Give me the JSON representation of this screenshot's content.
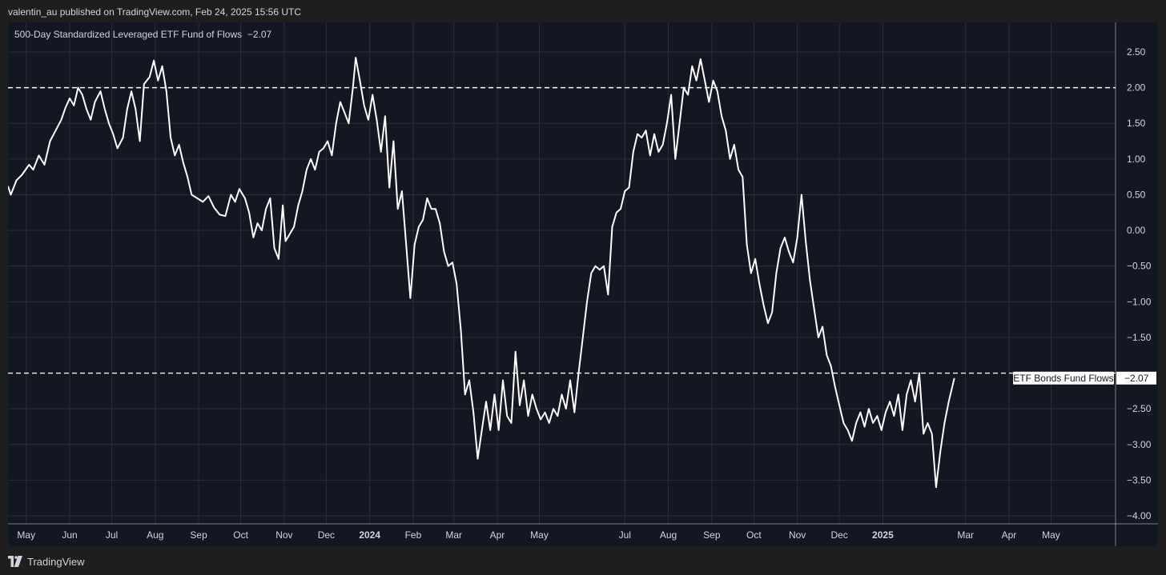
{
  "header": {
    "attribution": "valentin_au published on TradingView.com, Feb 24, 2025 15:56 UTC"
  },
  "footer": {
    "brand": "TradingView"
  },
  "colors": {
    "background": "#131722",
    "line": "#ffffff",
    "grid": "#2a2e39"
  },
  "chart_data": {
    "type": "line",
    "title": "500-Day Standardized Leveraged ETF Fund of Flows",
    "last_value_label": "−2.07",
    "ylim": [
      -4.0,
      2.85
    ],
    "yticks": [
      {
        "v": 2.5,
        "label": "2.50"
      },
      {
        "v": 2.0,
        "label": "2.00"
      },
      {
        "v": 1.5,
        "label": "1.50"
      },
      {
        "v": 1.0,
        "label": "1.00"
      },
      {
        "v": 0.5,
        "label": "0.50"
      },
      {
        "v": 0.0,
        "label": "0.00"
      },
      {
        "v": -0.5,
        "label": "−0.50"
      },
      {
        "v": -1.0,
        "label": "−1.00"
      },
      {
        "v": -1.5,
        "label": "−1.50"
      },
      {
        "v": -2.5,
        "label": "−2.50"
      },
      {
        "v": -3.0,
        "label": "−3.00"
      },
      {
        "v": -3.5,
        "label": "−3.50"
      },
      {
        "v": -4.0,
        "label": "−4.00"
      }
    ],
    "xlim": [
      "2023-04-18",
      "2025-05-31"
    ],
    "xticks": [
      {
        "date": "2023-05-01",
        "label": "May"
      },
      {
        "date": "2023-06-01",
        "label": "Jun"
      },
      {
        "date": "2023-07-01",
        "label": "Jul"
      },
      {
        "date": "2023-08-01",
        "label": "Aug"
      },
      {
        "date": "2023-09-01",
        "label": "Sep"
      },
      {
        "date": "2023-10-01",
        "label": "Oct"
      },
      {
        "date": "2023-11-01",
        "label": "Nov"
      },
      {
        "date": "2023-12-01",
        "label": "Dec"
      },
      {
        "date": "2024-01-01",
        "label": "2024",
        "bold": true
      },
      {
        "date": "2024-02-01",
        "label": "Feb"
      },
      {
        "date": "2024-03-01",
        "label": "Mar"
      },
      {
        "date": "2024-04-01",
        "label": "Apr"
      },
      {
        "date": "2024-05-01",
        "label": "May"
      },
      {
        "date": "2024-07-01",
        "label": "Jul"
      },
      {
        "date": "2024-08-01",
        "label": "Aug"
      },
      {
        "date": "2024-09-01",
        "label": "Sep"
      },
      {
        "date": "2024-10-01",
        "label": "Oct"
      },
      {
        "date": "2024-11-01",
        "label": "Nov"
      },
      {
        "date": "2024-12-01",
        "label": "Dec"
      },
      {
        "date": "2025-01-01",
        "label": "2025",
        "bold": true
      },
      {
        "date": "2025-03-01",
        "label": "Mar"
      },
      {
        "date": "2025-04-01",
        "label": "Apr"
      },
      {
        "date": "2025-05-01",
        "label": "May"
      }
    ],
    "reference_lines": [
      {
        "y": 2.0,
        "style": "dashed"
      },
      {
        "y": -2.0,
        "style": "dashed"
      }
    ],
    "series": [
      {
        "name": "ETF Bonds Fund Flows",
        "last_value": "−2.07",
        "points": [
          [
            "2023-04-18",
            0.62
          ],
          [
            "2023-04-20",
            0.5
          ],
          [
            "2023-04-24",
            0.7
          ],
          [
            "2023-04-28",
            0.78
          ],
          [
            "2023-05-03",
            0.92
          ],
          [
            "2023-05-06",
            0.85
          ],
          [
            "2023-05-10",
            1.05
          ],
          [
            "2023-05-14",
            0.92
          ],
          [
            "2023-05-18",
            1.25
          ],
          [
            "2023-05-22",
            1.4
          ],
          [
            "2023-05-26",
            1.55
          ],
          [
            "2023-05-29",
            1.72
          ],
          [
            "2023-06-01",
            1.85
          ],
          [
            "2023-06-04",
            1.75
          ],
          [
            "2023-06-07",
            2.0
          ],
          [
            "2023-06-10",
            1.9
          ],
          [
            "2023-06-13",
            1.7
          ],
          [
            "2023-06-16",
            1.55
          ],
          [
            "2023-06-19",
            1.8
          ],
          [
            "2023-06-23",
            1.95
          ],
          [
            "2023-06-26",
            1.7
          ],
          [
            "2023-06-29",
            1.5
          ],
          [
            "2023-07-02",
            1.35
          ],
          [
            "2023-07-05",
            1.15
          ],
          [
            "2023-07-09",
            1.3
          ],
          [
            "2023-07-12",
            1.7
          ],
          [
            "2023-07-15",
            1.95
          ],
          [
            "2023-07-18",
            1.7
          ],
          [
            "2023-07-21",
            1.25
          ],
          [
            "2023-07-24",
            2.05
          ],
          [
            "2023-07-28",
            2.15
          ],
          [
            "2023-07-31",
            2.38
          ],
          [
            "2023-08-03",
            2.1
          ],
          [
            "2023-08-06",
            2.3
          ],
          [
            "2023-08-09",
            1.95
          ],
          [
            "2023-08-12",
            1.3
          ],
          [
            "2023-08-15",
            1.05
          ],
          [
            "2023-08-18",
            1.2
          ],
          [
            "2023-08-21",
            0.95
          ],
          [
            "2023-08-24",
            0.75
          ],
          [
            "2023-08-27",
            0.5
          ],
          [
            "2023-08-31",
            0.45
          ],
          [
            "2023-09-04",
            0.4
          ],
          [
            "2023-09-08",
            0.48
          ],
          [
            "2023-09-12",
            0.32
          ],
          [
            "2023-09-16",
            0.22
          ],
          [
            "2023-09-20",
            0.2
          ],
          [
            "2023-09-24",
            0.5
          ],
          [
            "2023-09-27",
            0.4
          ],
          [
            "2023-09-30",
            0.58
          ],
          [
            "2023-10-04",
            0.45
          ],
          [
            "2023-10-07",
            0.25
          ],
          [
            "2023-10-10",
            -0.1
          ],
          [
            "2023-10-13",
            0.1
          ],
          [
            "2023-10-16",
            0.0
          ],
          [
            "2023-10-19",
            0.3
          ],
          [
            "2023-10-22",
            0.45
          ],
          [
            "2023-10-25",
            -0.25
          ],
          [
            "2023-10-28",
            -0.4
          ],
          [
            "2023-10-31",
            0.35
          ],
          [
            "2023-11-02",
            -0.15
          ],
          [
            "2023-11-05",
            -0.05
          ],
          [
            "2023-11-08",
            0.05
          ],
          [
            "2023-11-11",
            0.35
          ],
          [
            "2023-11-14",
            0.55
          ],
          [
            "2023-11-17",
            0.85
          ],
          [
            "2023-11-20",
            1.0
          ],
          [
            "2023-11-23",
            0.85
          ],
          [
            "2023-11-26",
            1.1
          ],
          [
            "2023-11-29",
            1.15
          ],
          [
            "2023-12-02",
            1.25
          ],
          [
            "2023-12-05",
            1.05
          ],
          [
            "2023-12-08",
            1.5
          ],
          [
            "2023-12-11",
            1.8
          ],
          [
            "2023-12-14",
            1.65
          ],
          [
            "2023-12-17",
            1.5
          ],
          [
            "2023-12-20",
            2.0
          ],
          [
            "2023-12-22",
            2.42
          ],
          [
            "2023-12-25",
            2.1
          ],
          [
            "2023-12-28",
            1.75
          ],
          [
            "2023-12-31",
            1.55
          ],
          [
            "2024-01-03",
            1.9
          ],
          [
            "2024-01-06",
            1.55
          ],
          [
            "2024-01-09",
            1.1
          ],
          [
            "2024-01-12",
            1.6
          ],
          [
            "2024-01-15",
            0.6
          ],
          [
            "2024-01-18",
            1.25
          ],
          [
            "2024-01-21",
            0.3
          ],
          [
            "2024-01-24",
            0.55
          ],
          [
            "2024-01-27",
            -0.2
          ],
          [
            "2024-01-30",
            -0.95
          ],
          [
            "2024-02-02",
            -0.2
          ],
          [
            "2024-02-05",
            0.05
          ],
          [
            "2024-02-08",
            0.15
          ],
          [
            "2024-02-11",
            0.45
          ],
          [
            "2024-02-14",
            0.3
          ],
          [
            "2024-02-17",
            0.3
          ],
          [
            "2024-02-20",
            0.1
          ],
          [
            "2024-02-23",
            -0.3
          ],
          [
            "2024-02-26",
            -0.5
          ],
          [
            "2024-02-29",
            -0.45
          ],
          [
            "2024-03-03",
            -0.75
          ],
          [
            "2024-03-06",
            -1.4
          ],
          [
            "2024-03-09",
            -2.3
          ],
          [
            "2024-03-12",
            -2.1
          ],
          [
            "2024-03-15",
            -2.55
          ],
          [
            "2024-03-18",
            -3.2
          ],
          [
            "2024-03-21",
            -2.8
          ],
          [
            "2024-03-24",
            -2.4
          ],
          [
            "2024-03-27",
            -2.8
          ],
          [
            "2024-03-30",
            -2.3
          ],
          [
            "2024-04-02",
            -2.8
          ],
          [
            "2024-04-05",
            -2.1
          ],
          [
            "2024-04-08",
            -2.6
          ],
          [
            "2024-04-11",
            -2.7
          ],
          [
            "2024-04-14",
            -1.7
          ],
          [
            "2024-04-17",
            -2.45
          ],
          [
            "2024-04-20",
            -2.1
          ],
          [
            "2024-04-23",
            -2.6
          ],
          [
            "2024-04-26",
            -2.3
          ],
          [
            "2024-04-29",
            -2.5
          ],
          [
            "2024-05-02",
            -2.65
          ],
          [
            "2024-05-05",
            -2.55
          ],
          [
            "2024-05-08",
            -2.7
          ],
          [
            "2024-05-11",
            -2.5
          ],
          [
            "2024-05-14",
            -2.6
          ],
          [
            "2024-05-17",
            -2.3
          ],
          [
            "2024-05-20",
            -2.5
          ],
          [
            "2024-05-23",
            -2.1
          ],
          [
            "2024-05-26",
            -2.55
          ],
          [
            "2024-05-29",
            -2.0
          ],
          [
            "2024-06-01",
            -1.5
          ],
          [
            "2024-06-04",
            -1.0
          ],
          [
            "2024-06-07",
            -0.6
          ],
          [
            "2024-06-10",
            -0.5
          ],
          [
            "2024-06-13",
            -0.55
          ],
          [
            "2024-06-16",
            -0.5
          ],
          [
            "2024-06-19",
            -0.9
          ],
          [
            "2024-06-22",
            0.05
          ],
          [
            "2024-06-25",
            0.25
          ],
          [
            "2024-06-28",
            0.3
          ],
          [
            "2024-07-01",
            0.55
          ],
          [
            "2024-07-04",
            0.6
          ],
          [
            "2024-07-07",
            1.1
          ],
          [
            "2024-07-10",
            1.35
          ],
          [
            "2024-07-13",
            1.3
          ],
          [
            "2024-07-16",
            1.4
          ],
          [
            "2024-07-19",
            1.05
          ],
          [
            "2024-07-22",
            1.35
          ],
          [
            "2024-07-25",
            1.1
          ],
          [
            "2024-07-28",
            1.2
          ],
          [
            "2024-07-31",
            1.5
          ],
          [
            "2024-08-03",
            1.9
          ],
          [
            "2024-08-06",
            1.0
          ],
          [
            "2024-08-09",
            1.5
          ],
          [
            "2024-08-12",
            2.0
          ],
          [
            "2024-08-15",
            1.9
          ],
          [
            "2024-08-18",
            2.3
          ],
          [
            "2024-08-21",
            2.1
          ],
          [
            "2024-08-24",
            2.4
          ],
          [
            "2024-08-27",
            2.1
          ],
          [
            "2024-08-30",
            1.8
          ],
          [
            "2024-09-02",
            2.1
          ],
          [
            "2024-09-05",
            1.95
          ],
          [
            "2024-09-08",
            1.6
          ],
          [
            "2024-09-11",
            1.4
          ],
          [
            "2024-09-14",
            1.0
          ],
          [
            "2024-09-17",
            1.2
          ],
          [
            "2024-09-20",
            0.85
          ],
          [
            "2024-09-23",
            0.75
          ],
          [
            "2024-09-26",
            -0.2
          ],
          [
            "2024-09-29",
            -0.6
          ],
          [
            "2024-10-02",
            -0.4
          ],
          [
            "2024-10-05",
            -0.75
          ],
          [
            "2024-10-08",
            -1.05
          ],
          [
            "2024-10-11",
            -1.3
          ],
          [
            "2024-10-14",
            -1.15
          ],
          [
            "2024-10-17",
            -0.6
          ],
          [
            "2024-10-20",
            -0.25
          ],
          [
            "2024-10-23",
            -0.1
          ],
          [
            "2024-10-26",
            -0.3
          ],
          [
            "2024-10-29",
            -0.45
          ],
          [
            "2024-11-01",
            -0.1
          ],
          [
            "2024-11-04",
            0.5
          ],
          [
            "2024-11-07",
            -0.15
          ],
          [
            "2024-11-10",
            -0.7
          ],
          [
            "2024-11-13",
            -1.1
          ],
          [
            "2024-11-16",
            -1.5
          ],
          [
            "2024-11-19",
            -1.35
          ],
          [
            "2024-11-22",
            -1.75
          ],
          [
            "2024-11-25",
            -1.9
          ],
          [
            "2024-11-28",
            -2.2
          ],
          [
            "2024-12-01",
            -2.45
          ],
          [
            "2024-12-04",
            -2.7
          ],
          [
            "2024-12-07",
            -2.8
          ],
          [
            "2024-12-10",
            -2.95
          ],
          [
            "2024-12-13",
            -2.7
          ],
          [
            "2024-12-16",
            -2.55
          ],
          [
            "2024-12-19",
            -2.75
          ],
          [
            "2024-12-22",
            -2.5
          ],
          [
            "2024-12-25",
            -2.7
          ],
          [
            "2024-12-28",
            -2.6
          ],
          [
            "2024-12-31",
            -2.8
          ],
          [
            "2025-01-03",
            -2.55
          ],
          [
            "2025-01-06",
            -2.4
          ],
          [
            "2025-01-09",
            -2.6
          ],
          [
            "2025-01-12",
            -2.3
          ],
          [
            "2025-01-15",
            -2.8
          ],
          [
            "2025-01-18",
            -2.3
          ],
          [
            "2025-01-21",
            -2.1
          ],
          [
            "2025-01-24",
            -2.4
          ],
          [
            "2025-01-27",
            -2.0
          ],
          [
            "2025-01-30",
            -2.85
          ],
          [
            "2025-02-02",
            -2.7
          ],
          [
            "2025-02-05",
            -2.85
          ],
          [
            "2025-02-08",
            -3.6
          ],
          [
            "2025-02-11",
            -3.1
          ],
          [
            "2025-02-14",
            -2.7
          ],
          [
            "2025-02-17",
            -2.4
          ],
          [
            "2025-02-21",
            -2.07
          ]
        ]
      }
    ]
  }
}
